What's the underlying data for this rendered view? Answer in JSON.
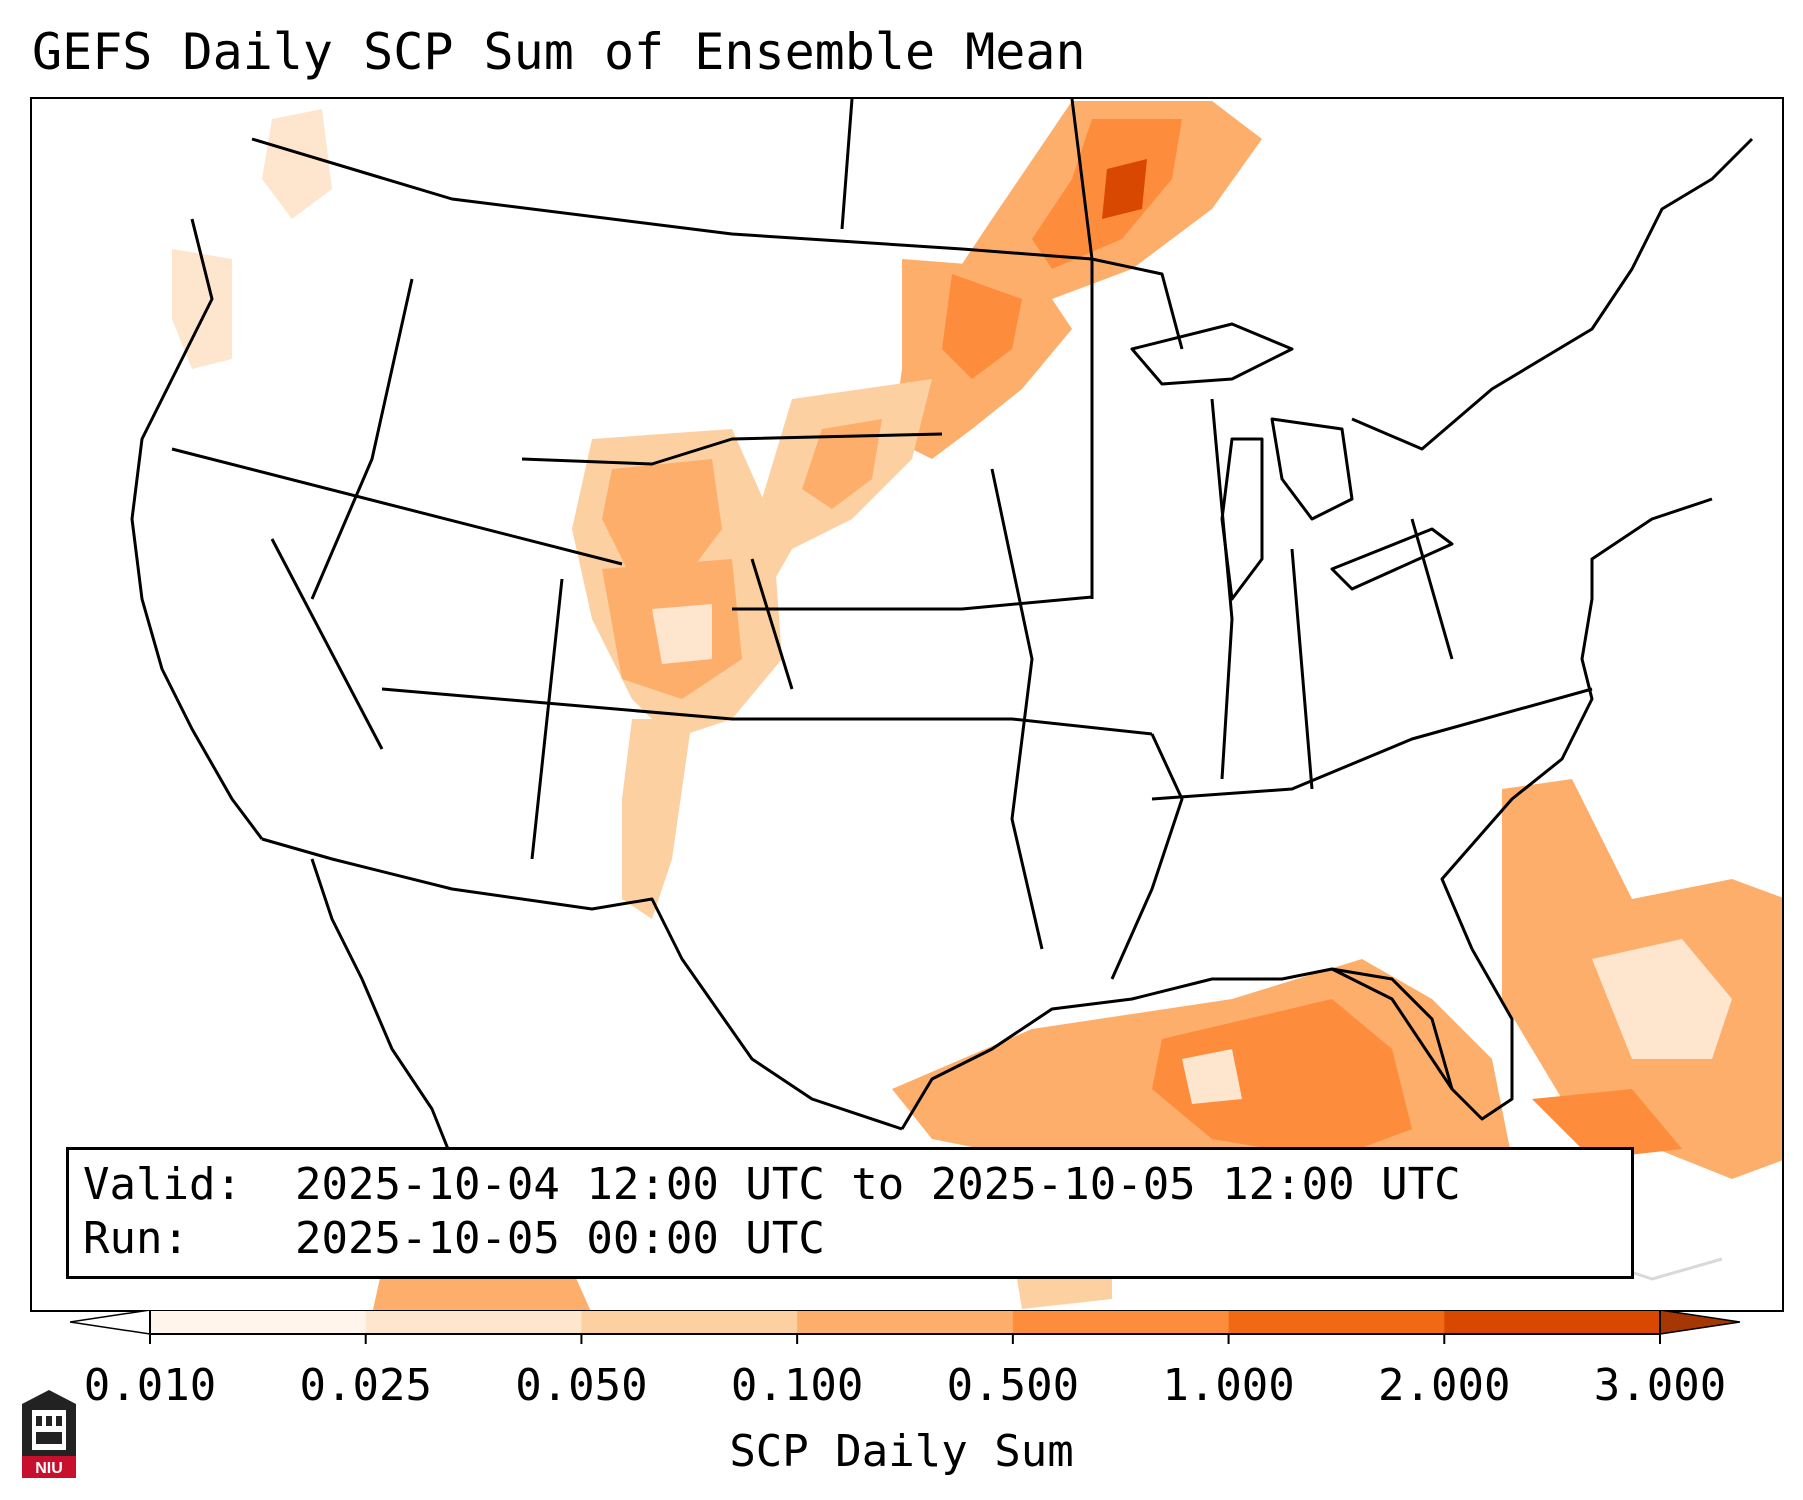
{
  "title": "GEFS Daily SCP Sum of Ensemble Mean",
  "valid": {
    "valid_label": "Valid:",
    "valid_text": "2025-10-04 12:00 UTC to 2025-10-05 12:00 UTC",
    "run_label": "Run:",
    "run_text": "2025-10-05 00:00 UTC"
  },
  "colorbar": {
    "label": "SCP Daily Sum",
    "ticks": [
      "0.010",
      "0.025",
      "0.050",
      "0.100",
      "0.500",
      "1.000",
      "2.000",
      "3.000"
    ],
    "colors": [
      "#fff5eb",
      "#fee6ce",
      "#fdd0a2",
      "#fdae6b",
      "#fd8d3c",
      "#f16913",
      "#d94801"
    ],
    "under_color": "#ffffff",
    "over_color": "#a63603"
  },
  "logo": {
    "text": "NIU",
    "icon": "niu-building-logo"
  },
  "legend_colors": {
    "light": "#fee6ce",
    "pale": "#fdd0a2",
    "mid": "#fdae6b",
    "orange": "#fd8d3c",
    "strong": "#f16913",
    "dark": "#d94801"
  }
}
